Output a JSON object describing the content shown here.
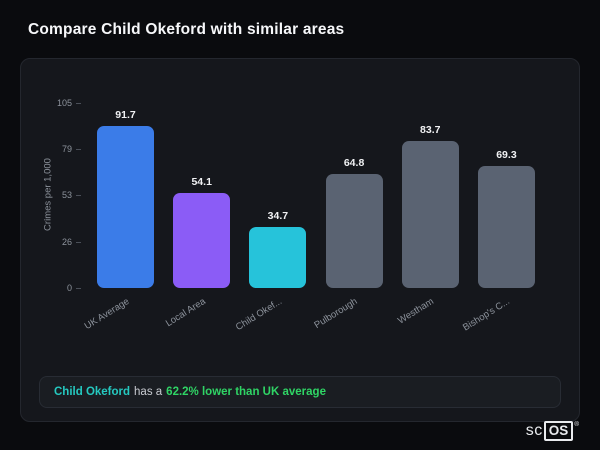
{
  "page": {
    "title": "Compare Child Okeford with similar areas"
  },
  "chart_data": {
    "type": "bar",
    "title": "Compare Child Okeford with similar areas",
    "xlabel": "",
    "ylabel": "Crimes per 1,000",
    "ylim": [
      0,
      105
    ],
    "yticks": [
      105,
      79,
      53,
      26,
      0
    ],
    "categories": [
      "UK Average",
      "Local Area",
      "Child Okef...",
      "Pulborough",
      "Westham",
      "Bishop's C..."
    ],
    "values": [
      91.7,
      54.1,
      34.7,
      64.8,
      83.7,
      69.3
    ],
    "colors": [
      "#3b7ce8",
      "#8b5cf6",
      "#26c3da",
      "#5a6372",
      "#5a6372",
      "#5a6372"
    ],
    "grid": false,
    "legend": false
  },
  "footer_note": {
    "area": "Child Okeford",
    "middle": "has a",
    "stat": "62.2% lower than UK average"
  },
  "brand": {
    "prefix": "sc",
    "suffix": "OS",
    "registered": "®"
  }
}
